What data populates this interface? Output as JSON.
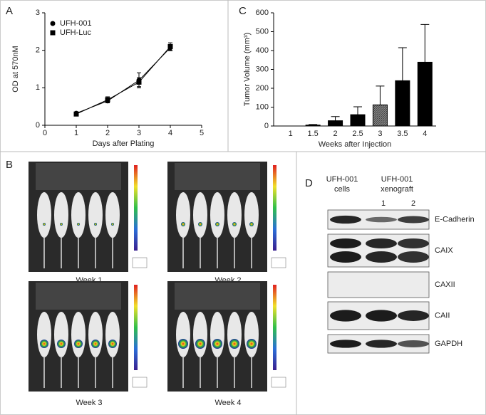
{
  "chart_data": [
    {
      "panel": "A",
      "type": "line",
      "x_label": "Days after Plating",
      "y_label": "OD at 570nM",
      "x": [
        1,
        2,
        3,
        4
      ],
      "series": [
        {
          "name": "UFH-001",
          "color": "#000000",
          "marker": "circle",
          "values": [
            0.32,
            0.65,
            1.2,
            2.07
          ],
          "errors": [
            0.03,
            0.05,
            0.2,
            0.08
          ]
        },
        {
          "name": "UFH-Luc",
          "color": "#000000",
          "marker": "square",
          "values": [
            0.3,
            0.68,
            1.15,
            2.1
          ],
          "errors": [
            0.03,
            0.08,
            0.12,
            0.1
          ]
        }
      ],
      "xlim": [
        0,
        5
      ],
      "xticks": [
        0,
        1,
        2,
        3,
        4,
        5
      ],
      "ylim": [
        0,
        3
      ],
      "yticks": [
        0,
        1,
        2,
        3
      ],
      "legend": "upper-left"
    },
    {
      "panel": "C",
      "type": "bar",
      "x_label": "Weeks after Injection",
      "y_label": "Tumor Volume (mm³)",
      "categories": [
        "1",
        "1.5",
        "2",
        "2.5",
        "3",
        "3.5",
        "4"
      ],
      "values": [
        0,
        5,
        28,
        60,
        112,
        240,
        338
      ],
      "errors": [
        0,
        3,
        22,
        42,
        100,
        175,
        200
      ],
      "colors": [
        "#000000",
        "#000000",
        "#000000",
        "#000000",
        "#777777",
        "#000000",
        "#000000"
      ],
      "ylim": [
        0,
        600
      ],
      "yticks": [
        0,
        100,
        200,
        300,
        400,
        500,
        600
      ]
    }
  ],
  "imaging": {
    "panel": "B",
    "captions": [
      "Week 1",
      "Week 2",
      "Week 3",
      "Week 4"
    ]
  },
  "blot": {
    "panel": "D",
    "headers": [
      [
        "UFH-001",
        "cells"
      ],
      [
        "UFH-001",
        "xenograft"
      ]
    ],
    "lanes": [
      "1",
      "2"
    ],
    "proteins": [
      "E-Cadherin",
      "CAIX",
      "CAXII",
      "CAII",
      "GAPDH"
    ]
  }
}
